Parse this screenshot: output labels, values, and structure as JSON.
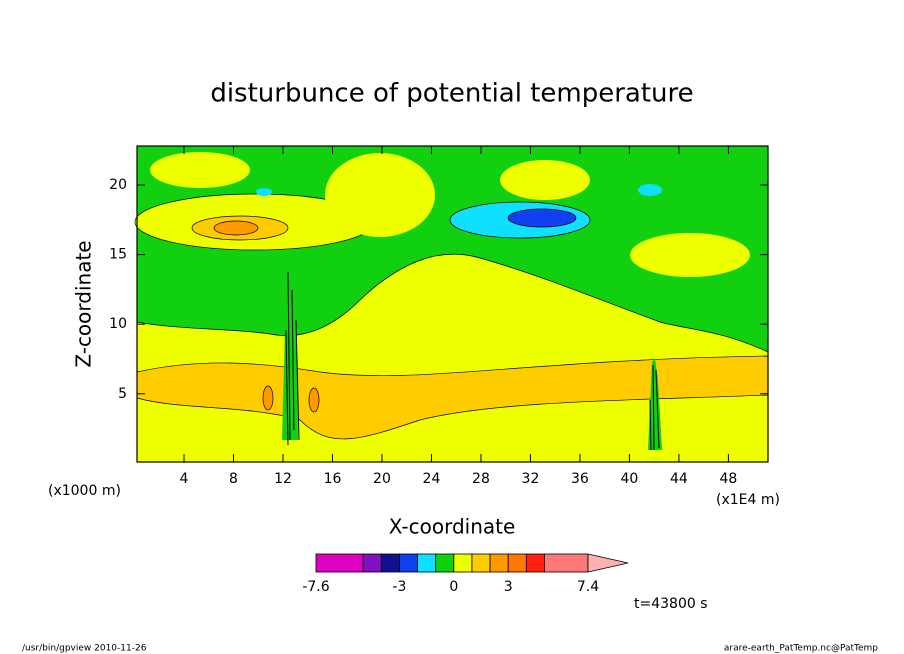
{
  "chart_data": {
    "type": "contour",
    "title": "disturbunce of potential temperature",
    "xlabel": "X-coordinate",
    "ylabel": "Z-coordinate",
    "xunit": "(x1000 m)",
    "x2unit": "(x1E4 m)",
    "xlim": [
      0.2,
      51.2
    ],
    "ylim": [
      0.1,
      22.8
    ],
    "xticks": [
      4,
      8,
      12,
      16,
      20,
      24,
      28,
      32,
      36,
      40,
      44,
      48
    ],
    "yticks": [
      5,
      10,
      15,
      20
    ],
    "colorbar": {
      "levels": [
        -7.6,
        -5,
        -4,
        -3,
        -2,
        -1,
        0,
        1,
        2,
        3,
        4,
        5,
        7.4
      ],
      "colors": [
        "#e000c0",
        "#8010c0",
        "#101090",
        "#1040f0",
        "#10e0ff",
        "#10d010",
        "#eeff00",
        "#ffcc00",
        "#ff9900",
        "#ff7700",
        "#ff2010",
        "#ff7878"
      ],
      "extend_color": "#ffb0b0",
      "ticks": [
        -7.6,
        -3,
        0,
        3,
        7.4
      ]
    },
    "annotation": "t=43800 s",
    "footer_left": "/usr/bin/gpview   2010-11-26",
    "footer_right": "arare-earth_PatTemp.nc@PatTemp"
  }
}
